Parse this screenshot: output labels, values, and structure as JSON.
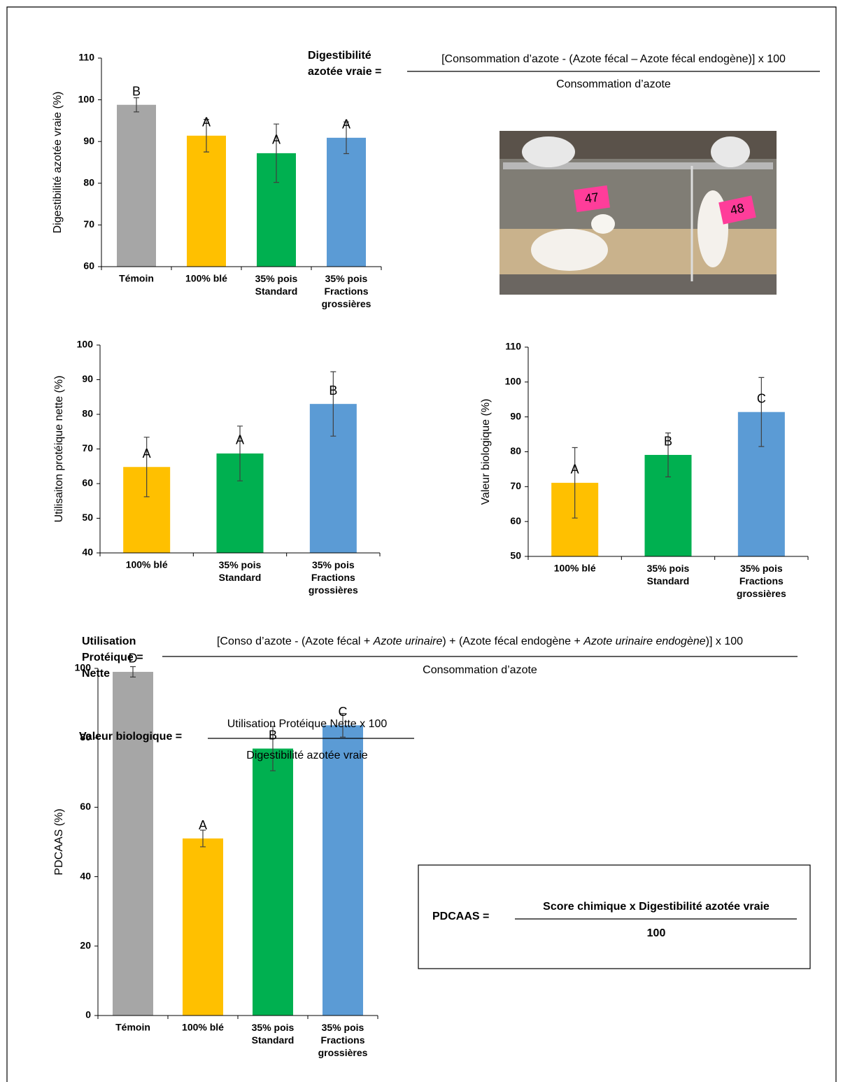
{
  "chart_data": [
    {
      "type": "bar",
      "ylabel": "Digestibilité azotée vraie (%)",
      "categories": [
        "Témoin",
        "100% blé",
        "35% pois\nStandard",
        "35% pois\nFractions\ngrossières"
      ],
      "values": [
        98.8,
        91.4,
        87.2,
        90.9
      ],
      "errors": [
        1.7,
        3.9,
        7,
        3.8
      ],
      "letters": [
        "B",
        "A",
        "A",
        "A"
      ],
      "colors": [
        "#a6a6a6",
        "#ffc000",
        "#00b050",
        "#5b9bd5"
      ],
      "ylim": [
        60,
        110
      ],
      "yticks": [
        60,
        70,
        80,
        90,
        100,
        110
      ]
    },
    {
      "type": "bar",
      "ylabel": "Utilisaiton protéique nette (%)",
      "categories": [
        "100% blé",
        "35% pois\nStandard",
        "35% pois\nFractions\ngrossières"
      ],
      "values": [
        64.8,
        68.7,
        83.0
      ],
      "errors": [
        8.6,
        7.9,
        9.3
      ],
      "letters": [
        "A",
        "A",
        "B"
      ],
      "colors": [
        "#ffc000",
        "#00b050",
        "#5b9bd5"
      ],
      "ylim": [
        40,
        100
      ],
      "yticks": [
        40,
        50,
        60,
        70,
        80,
        90,
        100
      ]
    },
    {
      "type": "bar",
      "ylabel": "Valeur biologique (%)",
      "categories": [
        "100% blé",
        "35% pois\nStandard",
        "35% pois\nFractions\ngrossières"
      ],
      "values": [
        71.1,
        79.1,
        91.4
      ],
      "errors": [
        10.1,
        6.3,
        9.9
      ],
      "letters": [
        "A",
        "B",
        "C"
      ],
      "colors": [
        "#ffc000",
        "#00b050",
        "#5b9bd5"
      ],
      "ylim": [
        50,
        110
      ],
      "yticks": [
        50,
        60,
        70,
        80,
        90,
        100,
        110
      ]
    },
    {
      "type": "bar",
      "ylabel": "PDCAAS (%)",
      "categories": [
        "Témoin",
        "100% blé",
        "35% pois\nStandard",
        "35% pois\nFractions\ngrossières"
      ],
      "values": [
        99,
        51,
        76.9,
        83.6
      ],
      "errors": [
        1.5,
        2.4,
        6.4,
        3.4
      ],
      "letters": [
        "D",
        "A",
        "B",
        "C"
      ],
      "colors": [
        "#a6a6a6",
        "#ffc000",
        "#00b050",
        "#5b9bd5"
      ],
      "ylim": [
        0,
        100
      ],
      "yticks": [
        0,
        20,
        40,
        60,
        80,
        100
      ]
    }
  ],
  "formulas": [
    {
      "lhs": [
        "Digestibilité",
        "azotée vraie ="
      ],
      "numerator": [
        {
          "text": "[Consommation d’azote  - (Azote fécal – Azote fécal endogène)] x 100"
        }
      ],
      "denominator": "Consommation d’azote"
    },
    {
      "lhs": [
        "Utilisation",
        "Protéique =",
        "Nette"
      ],
      "numerator": [
        {
          "text": "[Conso d’azote  - (Azote fécal + "
        },
        {
          "text": "Azote urinaire",
          "italic": true
        },
        {
          "text": ") + (Azote fécal endogène + "
        },
        {
          "text": "Azote urinaire endogène",
          "italic": true
        },
        {
          "text": ")] x 100"
        }
      ],
      "denominator": "Consommation d’azote"
    },
    {
      "lhs": [
        "Valeur biologique ="
      ],
      "numerator": [
        {
          "text": "Utilisation Protéique Nette x 100"
        }
      ],
      "denominator": "Digestibilité azotée vraie"
    },
    {
      "lhs": [
        "PDCAAS ="
      ],
      "numerator": [
        {
          "text": "Score chimique x Digestibilité azotée vraie"
        }
      ],
      "denominator": "100",
      "bold": true,
      "boxed": true
    }
  ],
  "photo": {
    "tags": [
      "47",
      "48"
    ]
  }
}
